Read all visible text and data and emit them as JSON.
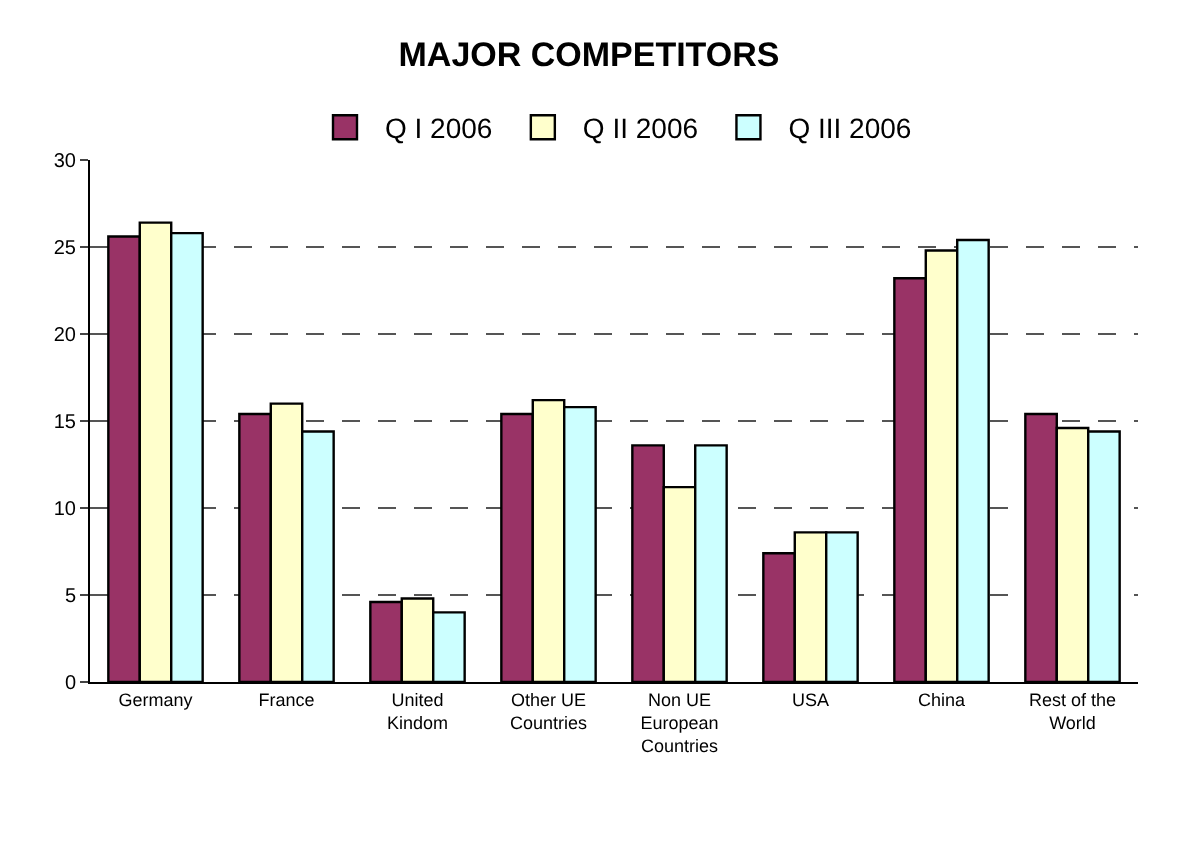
{
  "chart_data": {
    "type": "bar",
    "title": "MAJOR COMPETITORS",
    "categories": [
      "Germany",
      "France",
      "United Kindom",
      "Other UE Countries",
      "Non UE European Countries",
      "USA",
      "China",
      "Rest of the World"
    ],
    "series": [
      {
        "name": "Q I 2006",
        "color": "#993366",
        "values": [
          25.6,
          15.4,
          4.6,
          15.4,
          13.6,
          7.4,
          23.2,
          15.4
        ]
      },
      {
        "name": "Q II 2006",
        "color": "#ffffcc",
        "values": [
          26.4,
          16.0,
          4.8,
          16.2,
          11.2,
          8.6,
          24.8,
          14.6
        ]
      },
      {
        "name": "Q III 2006",
        "color": "#ccffff",
        "values": [
          25.8,
          14.4,
          4.0,
          15.8,
          13.6,
          8.6,
          25.4,
          14.4
        ]
      }
    ],
    "ylim": [
      0,
      30
    ],
    "yticks": [
      0,
      5,
      10,
      15,
      20,
      25,
      30
    ],
    "grid": "y",
    "legend": "top"
  }
}
